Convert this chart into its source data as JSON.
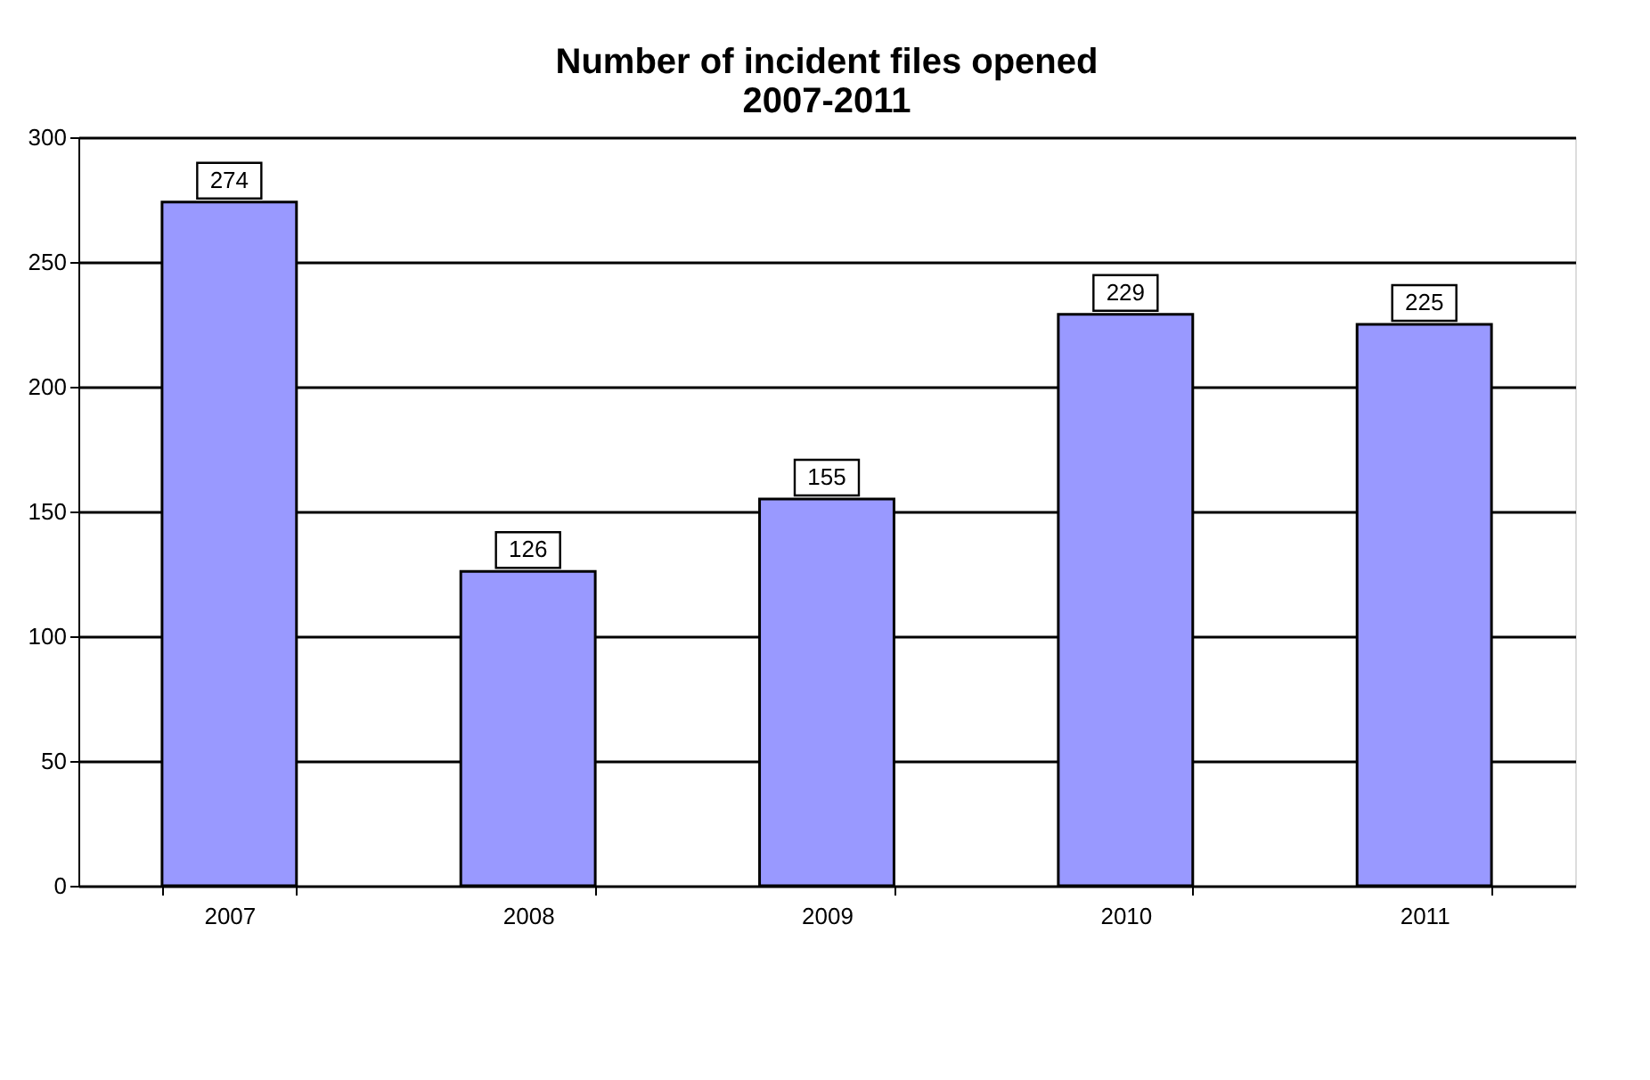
{
  "chart_data": {
    "type": "bar",
    "title": "Number of incident files opened\n2007-2011",
    "categories": [
      "2007",
      "2008",
      "2009",
      "2010",
      "2011"
    ],
    "values": [
      274,
      126,
      155,
      229,
      225
    ],
    "color": "#9999ff",
    "ylim": [
      0,
      300
    ],
    "yticks": [
      0,
      50,
      100,
      150,
      200,
      250,
      300
    ],
    "grid": "y",
    "data_labels": true
  }
}
